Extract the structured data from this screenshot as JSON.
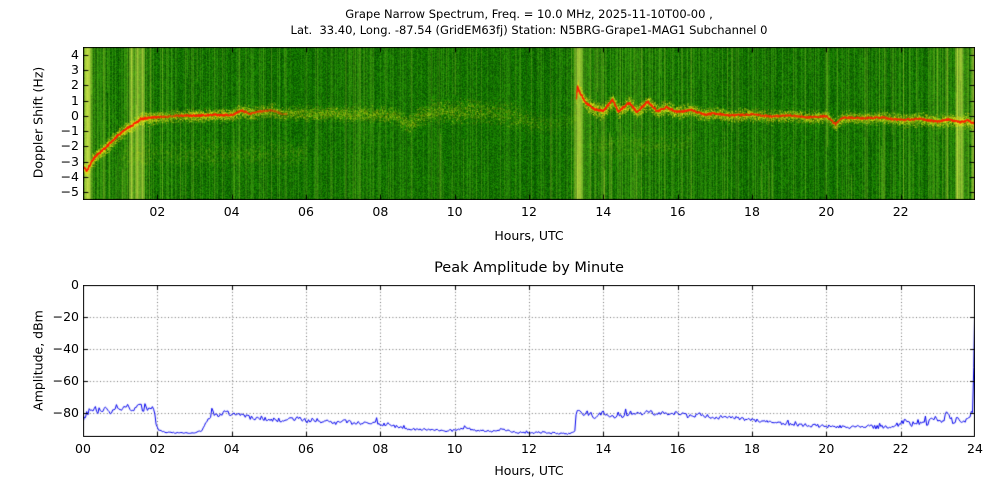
{
  "spectrogram": {
    "title_line1": "Grape Narrow Spectrum, Freq. = 10.0 MHz, 2025-11-10T00-00 ,",
    "title_line2": "Lat.  33.40, Long. -87.54 (GridEM63fj) Station: N5BRG-Grape1-MAG1 Subchannel 0",
    "ylabel": "Doppler Shift (Hz)",
    "xlabel": "Hours, UTC",
    "ytick_labels": [
      "4",
      "3",
      "2",
      "1",
      "0",
      "−1",
      "−2",
      "−3",
      "−4",
      "−5"
    ],
    "xtick_labels": [
      "02",
      "04",
      "06",
      "08",
      "10",
      "12",
      "14",
      "16",
      "18",
      "20",
      "22"
    ]
  },
  "amplitude": {
    "title": "Peak Amplitude by Minute",
    "ylabel": "Amplitude, dBm",
    "xlabel": "Hours, UTC",
    "ytick_labels": [
      "0",
      "−20",
      "−40",
      "−60",
      "−80"
    ],
    "xtick_labels": [
      "00",
      "02",
      "04",
      "06",
      "08",
      "10",
      "12",
      "14",
      "16",
      "18",
      "20",
      "22",
      "24"
    ]
  },
  "chart_data": [
    {
      "type": "heatmap",
      "subtype": "doppler-spectrogram",
      "title": "Grape Narrow Spectrum, Freq. = 10.0 MHz, 2025-11-10T00-00, Lat. 33.40, Long. -87.54 (GridEM63fj) Station: N5BRG-Grape1-MAG1 Subchannel 0",
      "xlabel": "Hours, UTC",
      "ylabel": "Doppler Shift (Hz)",
      "xlim": [
        0,
        24
      ],
      "ylim": [
        -5.5,
        4.5
      ],
      "xticks": [
        2,
        4,
        6,
        8,
        10,
        12,
        14,
        16,
        18,
        20,
        22
      ],
      "yticks": [
        4,
        3,
        2,
        1,
        0,
        -1,
        -2,
        -3,
        -4,
        -5
      ],
      "colors": {
        "background": "#0f6e00",
        "signal": "#f0f01e",
        "peak": "#ff1e00"
      },
      "doppler_trace_hz": [
        [
          0,
          -3.3
        ],
        [
          0.1,
          -3.6
        ],
        [
          0.25,
          -2.9
        ],
        [
          0.4,
          -2.5
        ],
        [
          0.6,
          -2.1
        ],
        [
          0.8,
          -1.6
        ],
        [
          1.0,
          -1.15
        ],
        [
          1.2,
          -0.8
        ],
        [
          1.4,
          -0.5
        ],
        [
          1.55,
          -0.2
        ],
        [
          1.7,
          -0.15
        ],
        [
          1.9,
          -0.1
        ],
        [
          2.2,
          -0.05
        ],
        [
          2.6,
          0
        ],
        [
          3.0,
          0.02
        ],
        [
          3.5,
          0.05
        ],
        [
          4.0,
          0.05
        ],
        [
          4.25,
          0.35
        ],
        [
          4.5,
          0.15
        ],
        [
          4.8,
          0.3
        ],
        [
          5.1,
          0.35
        ],
        [
          5.4,
          0.1
        ],
        [
          5.8,
          0.2
        ],
        [
          6.2,
          0.12
        ],
        [
          6.6,
          0.18
        ],
        [
          7.0,
          0.1
        ],
        [
          7.5,
          0.12
        ],
        [
          8.0,
          0.15
        ],
        [
          8.4,
          0.05
        ],
        [
          8.75,
          -0.55
        ],
        [
          9.0,
          -0.1
        ],
        [
          9.3,
          0.3
        ],
        [
          9.7,
          0.35
        ],
        [
          10.0,
          0.25
        ],
        [
          10.4,
          0.35
        ],
        [
          10.8,
          0.25
        ],
        [
          11.2,
          0.15
        ],
        [
          11.6,
          -0.05
        ],
        [
          12.0,
          -0.35
        ],
        [
          12.4,
          -0.55
        ],
        [
          12.8,
          -0.45
        ],
        [
          13.1,
          -0.3
        ],
        [
          13.24,
          -0.2
        ],
        [
          13.3,
          1.9
        ],
        [
          13.4,
          1.4
        ],
        [
          13.55,
          0.8
        ],
        [
          13.75,
          0.45
        ],
        [
          14.0,
          0.3
        ],
        [
          14.25,
          1.05
        ],
        [
          14.4,
          0.3
        ],
        [
          14.7,
          0.85
        ],
        [
          14.9,
          0.25
        ],
        [
          15.2,
          0.95
        ],
        [
          15.45,
          0.3
        ],
        [
          15.7,
          0.55
        ],
        [
          16.0,
          0.25
        ],
        [
          16.35,
          0.4
        ],
        [
          16.7,
          0.1
        ],
        [
          17.0,
          0.15
        ],
        [
          17.5,
          0.02
        ],
        [
          18.0,
          0.1
        ],
        [
          18.5,
          -0.05
        ],
        [
          19.0,
          0.05
        ],
        [
          19.5,
          -0.1
        ],
        [
          20.0,
          -0.02
        ],
        [
          20.25,
          -0.55
        ],
        [
          20.45,
          -0.1
        ],
        [
          21.0,
          -0.15
        ],
        [
          21.5,
          -0.1
        ],
        [
          22.0,
          -0.28
        ],
        [
          22.5,
          -0.2
        ],
        [
          23.0,
          -0.38
        ],
        [
          23.3,
          -0.22
        ],
        [
          23.6,
          -0.42
        ],
        [
          23.8,
          -0.3
        ],
        [
          24,
          -0.5
        ]
      ],
      "band_intensity": [
        [
          0,
          1
        ],
        [
          1.5,
          1
        ],
        [
          2.0,
          0.8
        ],
        [
          2.4,
          0.62
        ],
        [
          2.9,
          0.85
        ],
        [
          3.6,
          0.9
        ],
        [
          4.3,
          0.8
        ],
        [
          4.9,
          0.65
        ],
        [
          5.5,
          0.58
        ],
        [
          6.5,
          0.55
        ],
        [
          7.5,
          0.52
        ],
        [
          8.5,
          0.5
        ],
        [
          9.0,
          0.55
        ],
        [
          10.0,
          0.55
        ],
        [
          11.0,
          0.48
        ],
        [
          11.7,
          0.42
        ],
        [
          12.2,
          0.3
        ],
        [
          12.6,
          0.22
        ],
        [
          13.0,
          0.18
        ],
        [
          13.24,
          0.18
        ],
        [
          13.3,
          1
        ],
        [
          14.5,
          0.95
        ],
        [
          15.5,
          0.9
        ],
        [
          16.5,
          0.82
        ],
        [
          17.5,
          0.78
        ],
        [
          18.5,
          0.75
        ],
        [
          19.5,
          0.75
        ],
        [
          20.5,
          0.78
        ],
        [
          21.5,
          0.75
        ],
        [
          22.5,
          0.8
        ],
        [
          23.5,
          0.85
        ],
        [
          24,
          0.9
        ]
      ],
      "band_sigma_hz": [
        [
          0,
          0.3
        ],
        [
          3,
          0.28
        ],
        [
          8,
          0.35
        ],
        [
          9.5,
          0.5
        ],
        [
          11.5,
          0.55
        ],
        [
          12.3,
          0.45
        ],
        [
          13.2,
          0.4
        ],
        [
          13.4,
          0.35
        ],
        [
          16,
          0.3
        ],
        [
          20,
          0.28
        ],
        [
          24,
          0.3
        ]
      ],
      "noise_density": [
        [
          0,
          0.95
        ],
        [
          0.6,
          0.85
        ],
        [
          1.2,
          0.9
        ],
        [
          1.9,
          0.85
        ],
        [
          2.1,
          0.5
        ],
        [
          3,
          0.45
        ],
        [
          4,
          0.5
        ],
        [
          5,
          0.5
        ],
        [
          6,
          0.45
        ],
        [
          7,
          0.42
        ],
        [
          8,
          0.45
        ],
        [
          9,
          0.42
        ],
        [
          10,
          0.45
        ],
        [
          11,
          0.4
        ],
        [
          12,
          0.38
        ],
        [
          13,
          0.42
        ],
        [
          13.3,
          0.95
        ],
        [
          14,
          0.85
        ],
        [
          15,
          0.8
        ],
        [
          16,
          0.6
        ],
        [
          17,
          0.5
        ],
        [
          18,
          0.5
        ],
        [
          19,
          0.45
        ],
        [
          20,
          0.5
        ],
        [
          21,
          0.45
        ],
        [
          22,
          0.55
        ],
        [
          22.7,
          0.65
        ],
        [
          23.3,
          0.7
        ],
        [
          23.7,
          0.9
        ],
        [
          24,
          0.85
        ]
      ],
      "bright_columns_hours": [
        0.05,
        0.1,
        0.16,
        1.3,
        1.45,
        1.6,
        13.28,
        13.36,
        23.52,
        23.62,
        23.95
      ],
      "subband_patches": [
        {
          "hours": [
            1.0,
            6.0
          ],
          "hz": -2.5
        },
        {
          "hours": [
            13.6,
            16.3
          ],
          "hz": -1.9
        }
      ],
      "signal_gap_hours": [
        12.2,
        13.25
      ]
    },
    {
      "type": "line",
      "title": "Peak Amplitude by Minute",
      "xlabel": "Hours, UTC",
      "ylabel": "Amplitude, dBm",
      "xlim": [
        0,
        24
      ],
      "ylim": [
        -95,
        0
      ],
      "xticks": [
        0,
        2,
        4,
        6,
        8,
        10,
        12,
        14,
        16,
        18,
        20,
        22,
        24
      ],
      "yticks": [
        0,
        -20,
        -40,
        -60,
        -80
      ],
      "grid": "dotted",
      "line_color": "#0000ee",
      "series": [
        {
          "name": "peak_amplitude_dbm",
          "points": [
            [
              0,
              -86
            ],
            [
              0.05,
              -82
            ],
            [
              0.15,
              -79
            ],
            [
              0.3,
              -77
            ],
            [
              0.45,
              -80
            ],
            [
              0.6,
              -77
            ],
            [
              0.75,
              -79
            ],
            [
              0.9,
              -76
            ],
            [
              1.05,
              -78
            ],
            [
              1.2,
              -75
            ],
            [
              1.35,
              -78
            ],
            [
              1.5,
              -75
            ],
            [
              1.65,
              -78
            ],
            [
              1.8,
              -76
            ],
            [
              1.92,
              -78
            ],
            [
              1.98,
              -90
            ],
            [
              2.2,
              -92
            ],
            [
              2.6,
              -92.5
            ],
            [
              3.0,
              -92.5
            ],
            [
              3.2,
              -91
            ],
            [
              3.35,
              -84
            ],
            [
              3.5,
              -80
            ],
            [
              3.65,
              -82
            ],
            [
              3.8,
              -79
            ],
            [
              4.0,
              -81
            ],
            [
              4.2,
              -80
            ],
            [
              4.4,
              -82
            ],
            [
              4.6,
              -84
            ],
            [
              4.8,
              -83
            ],
            [
              5.0,
              -85
            ],
            [
              5.2,
              -84
            ],
            [
              5.4,
              -85.5
            ],
            [
              5.6,
              -84
            ],
            [
              5.8,
              -83.5
            ],
            [
              6.0,
              -85
            ],
            [
              6.2,
              -84
            ],
            [
              6.4,
              -85.5
            ],
            [
              6.6,
              -84.5
            ],
            [
              6.8,
              -86
            ],
            [
              7.0,
              -85
            ],
            [
              7.2,
              -86
            ],
            [
              7.4,
              -85.5
            ],
            [
              7.6,
              -87
            ],
            [
              7.8,
              -86
            ],
            [
              8.0,
              -87.5
            ],
            [
              8.2,
              -87
            ],
            [
              8.5,
              -89
            ],
            [
              8.8,
              -90
            ],
            [
              9.2,
              -90.5
            ],
            [
              9.6,
              -91
            ],
            [
              10.0,
              -91
            ],
            [
              10.3,
              -89.5
            ],
            [
              10.6,
              -91
            ],
            [
              11.0,
              -91.5
            ],
            [
              11.3,
              -90
            ],
            [
              11.6,
              -92
            ],
            [
              12.0,
              -92.5
            ],
            [
              12.4,
              -92
            ],
            [
              12.8,
              -93
            ],
            [
              13.1,
              -93
            ],
            [
              13.22,
              -93
            ],
            [
              13.28,
              -79
            ],
            [
              13.45,
              -81
            ],
            [
              13.6,
              -80
            ],
            [
              13.8,
              -82.5
            ],
            [
              14.0,
              -80
            ],
            [
              14.2,
              -83
            ],
            [
              14.4,
              -80.5
            ],
            [
              14.6,
              -82
            ],
            [
              14.8,
              -79
            ],
            [
              15.0,
              -82
            ],
            [
              15.2,
              -78.5
            ],
            [
              15.4,
              -81
            ],
            [
              15.6,
              -80
            ],
            [
              15.8,
              -82
            ],
            [
              16.0,
              -80
            ],
            [
              16.3,
              -82
            ],
            [
              16.6,
              -81
            ],
            [
              17.0,
              -83
            ],
            [
              17.4,
              -82.5
            ],
            [
              17.8,
              -84
            ],
            [
              18.2,
              -85
            ],
            [
              18.6,
              -86
            ],
            [
              19.0,
              -87
            ],
            [
              19.4,
              -87.5
            ],
            [
              19.8,
              -88
            ],
            [
              20.2,
              -88.5
            ],
            [
              20.6,
              -89
            ],
            [
              21.0,
              -88
            ],
            [
              21.4,
              -89
            ],
            [
              21.8,
              -88
            ],
            [
              22.0,
              -86.5
            ],
            [
              22.15,
              -83.5
            ],
            [
              22.3,
              -87
            ],
            [
              22.5,
              -85.5
            ],
            [
              22.7,
              -87
            ],
            [
              22.9,
              -83
            ],
            [
              23.1,
              -86
            ],
            [
              23.25,
              -80
            ],
            [
              23.4,
              -85
            ],
            [
              23.55,
              -84
            ],
            [
              23.7,
              -86
            ],
            [
              23.85,
              -82
            ],
            [
              23.95,
              -78
            ],
            [
              24,
              0
            ]
          ],
          "noise_level": [
            [
              0,
              1.8
            ],
            [
              1.9,
              1.8
            ],
            [
              2.05,
              0.3
            ],
            [
              3.15,
              0.3
            ],
            [
              3.4,
              1.5
            ],
            [
              8.3,
              1.3
            ],
            [
              8.6,
              0.7
            ],
            [
              13.1,
              0.6
            ],
            [
              13.3,
              1.6
            ],
            [
              16,
              1.4
            ],
            [
              19,
              1.0
            ],
            [
              21.8,
              1.2
            ],
            [
              22,
              1.8
            ],
            [
              23.9,
              1.8
            ],
            [
              24,
              0.2
            ]
          ]
        }
      ]
    }
  ]
}
